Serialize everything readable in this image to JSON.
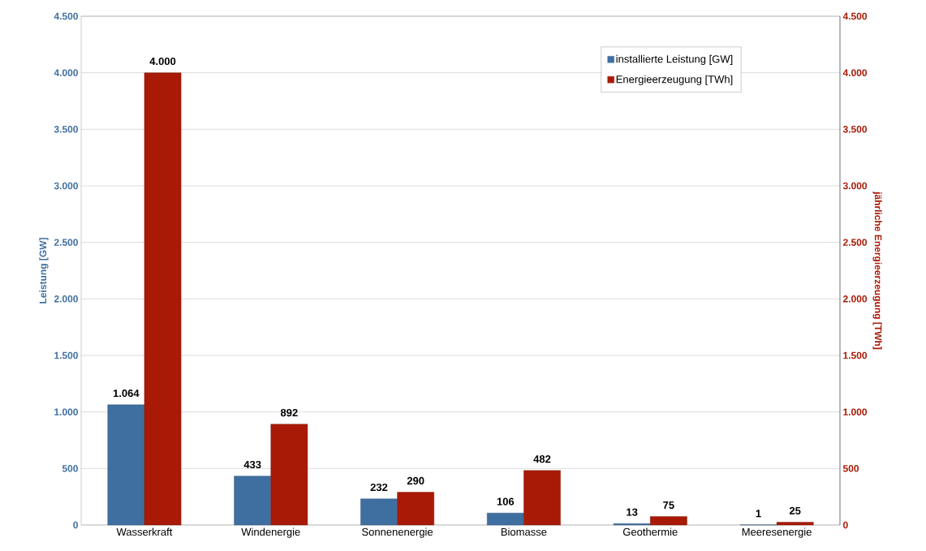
{
  "chart_data": {
    "type": "bar",
    "categories": [
      "Wasserkraft",
      "Windenergie",
      "Sonnenenergie",
      "Biomasse",
      "Geothermie",
      "Meeresenergie"
    ],
    "ylabel": "Leistung [GW]",
    "y2label": "jährliche Energieerzeugung [TWh]",
    "ylim": [
      0,
      4500
    ],
    "yticks": [
      {
        "value": 0,
        "label": "0"
      },
      {
        "value": 500,
        "label": "500"
      },
      {
        "value": 1000,
        "label": "1.000"
      },
      {
        "value": 1500,
        "label": "1.500"
      },
      {
        "value": 2000,
        "label": "2.000"
      },
      {
        "value": 2500,
        "label": "2.500"
      },
      {
        "value": 3000,
        "label": "3.000"
      },
      {
        "value": 3500,
        "label": "3.500"
      },
      {
        "value": 4000,
        "label": "4.000"
      },
      {
        "value": 4500,
        "label": "4.500"
      }
    ],
    "y2lim": [
      0,
      4500
    ],
    "y2ticks": [
      {
        "value": 0,
        "label": "0"
      },
      {
        "value": 500,
        "label": "500"
      },
      {
        "value": 1000,
        "label": "1.000"
      },
      {
        "value": 1500,
        "label": "1.500"
      },
      {
        "value": 2000,
        "label": "2.000"
      },
      {
        "value": 2500,
        "label": "2.500"
      },
      {
        "value": 3000,
        "label": "3.000"
      },
      {
        "value": 3500,
        "label": "3.500"
      },
      {
        "value": 4000,
        "label": "4.000"
      },
      {
        "value": 4500,
        "label": "4.500"
      }
    ],
    "series": [
      {
        "name": "installierte Leistung [GW]",
        "color": "#3f6fa0",
        "values": [
          1064,
          433,
          232,
          106,
          13,
          1
        ],
        "value_labels": [
          "1.064",
          "433",
          "232",
          "106",
          "13",
          "1"
        ]
      },
      {
        "name": "Energieerzeugung [TWh]",
        "color": "#a81a06",
        "axis": "y2",
        "values": [
          4000,
          892,
          290,
          482,
          75,
          25
        ],
        "value_labels": [
          "4.000",
          "892",
          "290",
          "482",
          "75",
          "25"
        ]
      }
    ],
    "grid": "y",
    "legend": "top right"
  }
}
